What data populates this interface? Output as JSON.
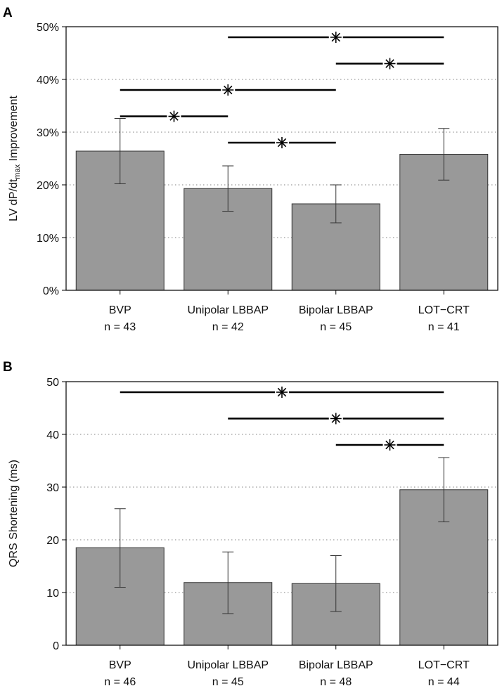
{
  "chart_data": [
    {
      "type": "bar",
      "panel": "A",
      "ylabel_parts": {
        "main": "LV dP/dt",
        "sub": "max",
        "rest": " Improvement"
      },
      "ylabel": "LV dP/dtmax Improvement",
      "xlabel": "",
      "ylim": [
        0,
        50
      ],
      "yticks": [
        0,
        10,
        20,
        30,
        40,
        50
      ],
      "ytick_suffix": "%",
      "grid": true,
      "categories": [
        "BVP",
        "Unipolar LBBAP",
        "Bipolar LBBAP",
        "LOT−CRT"
      ],
      "n_labels": [
        "n = 43",
        "n = 42",
        "n = 45",
        "n = 41"
      ],
      "values": [
        26.4,
        19.3,
        16.4,
        25.8
      ],
      "error_low": [
        20.2,
        15.0,
        12.8,
        20.9
      ],
      "error_high": [
        32.6,
        23.6,
        20.0,
        30.7
      ],
      "significance": [
        {
          "from": 0,
          "to": 1,
          "level": 33
        },
        {
          "from": 1,
          "to": 2,
          "level": 28
        },
        {
          "from": 0,
          "to": 2,
          "level": 38
        },
        {
          "from": 2,
          "to": 3,
          "level": 43
        },
        {
          "from": 1,
          "to": 3,
          "level": 48
        }
      ],
      "bar_color": "#999999"
    },
    {
      "type": "bar",
      "panel": "B",
      "ylabel_parts": {
        "main": "QRS Shortening (ms)",
        "sub": "",
        "rest": ""
      },
      "ylabel": "QRS Shortening (ms)",
      "xlabel": "",
      "ylim": [
        0,
        50
      ],
      "yticks": [
        0,
        10,
        20,
        30,
        40,
        50
      ],
      "ytick_suffix": "",
      "grid": true,
      "categories": [
        "BVP",
        "Unipolar LBBAP",
        "Bipolar LBBAP",
        "LOT−CRT"
      ],
      "n_labels": [
        "n = 46",
        "n = 45",
        "n = 48",
        "n = 44"
      ],
      "values": [
        18.5,
        11.9,
        11.7,
        29.5
      ],
      "error_low": [
        11.0,
        6.0,
        6.4,
        23.4
      ],
      "error_high": [
        25.9,
        17.7,
        17.0,
        35.6
      ],
      "significance": [
        {
          "from": 2,
          "to": 3,
          "level": 38
        },
        {
          "from": 1,
          "to": 3,
          "level": 43
        },
        {
          "from": 0,
          "to": 3,
          "level": 48
        }
      ],
      "bar_color": "#999999"
    }
  ]
}
